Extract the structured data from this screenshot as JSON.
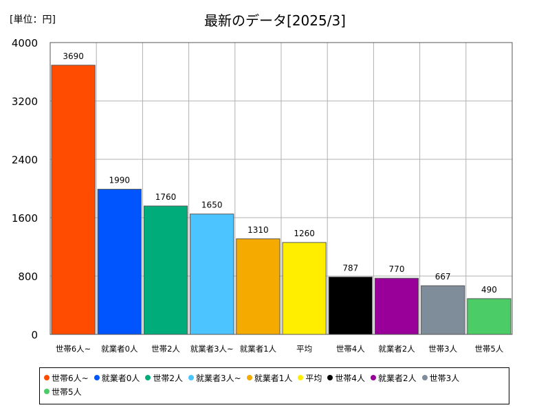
{
  "unit_label": "[単位：円]",
  "chart_data": {
    "type": "bar",
    "title": "最新のデータ[2025/3]",
    "categories": [
      "世帯6人~",
      "就業者0人",
      "世帯2人",
      "就業者3人~",
      "就業者1人",
      "平均",
      "世帯4人",
      "就業者2人",
      "世帯3人",
      "世帯5人"
    ],
    "values": [
      3690,
      1990,
      1760,
      1650,
      1310,
      1260,
      787,
      770,
      667,
      490
    ],
    "colors": [
      "#ff4c00",
      "#0055ff",
      "#00ad7a",
      "#4cc4ff",
      "#f5aa00",
      "#ffee00",
      "#000000",
      "#990099",
      "#7f8c99",
      "#4ccc66"
    ],
    "yticks": [
      "0",
      "800",
      "1600",
      "2400",
      "3200",
      "4000"
    ],
    "ylim": [
      0,
      4000
    ],
    "grid": true,
    "legend_position": "bottom"
  }
}
